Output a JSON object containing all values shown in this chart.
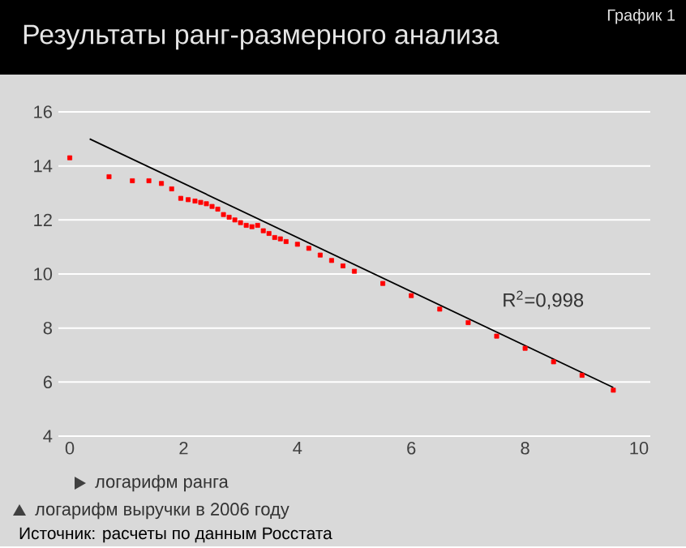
{
  "chart_data": {
    "type": "scatter",
    "title": "Результаты ранг-размерного анализа",
    "subtitle": "График 1",
    "xlabel": "логарифм ранга",
    "ylabel": "логарифм выручки в 2006 году",
    "annotations": [
      "R$^{2}$=0,998",
      "Источник: расчеты по данным Росстата"
    ],
    "xlim": [
      -0.2,
      10.2
    ],
    "ylim": [
      4,
      16
    ],
    "xticks": [
      0,
      2,
      4,
      6,
      8,
      10
    ],
    "yticks": [
      4,
      6,
      8,
      10,
      12,
      14,
      16
    ],
    "grid": "y",
    "series": [
      {
        "color": "#ff0000",
        "marker": "square",
        "x": [
          0,
          0.69,
          1.1,
          1.39,
          1.61,
          1.79,
          1.95,
          2.08,
          2.2,
          2.3,
          2.4,
          2.5,
          2.6,
          2.7,
          2.8,
          2.9,
          3.0,
          3.1,
          3.2,
          3.3,
          3.4,
          3.5,
          3.6,
          3.7,
          3.8,
          4.0,
          4.2,
          4.4,
          4.6,
          4.8,
          5.0,
          5.5,
          6.0,
          6.5,
          7.0,
          7.5,
          8.0,
          8.5,
          9.0,
          9.55
        ],
        "values": [
          14.3,
          13.6,
          13.45,
          13.45,
          13.35,
          13.15,
          12.8,
          12.75,
          12.7,
          12.65,
          12.6,
          12.5,
          12.4,
          12.2,
          12.1,
          12.0,
          11.9,
          11.8,
          11.75,
          11.8,
          11.6,
          11.5,
          11.35,
          11.3,
          11.2,
          11.1,
          10.95,
          10.7,
          10.5,
          10.3,
          10.1,
          9.65,
          9.2,
          8.7,
          8.2,
          7.7,
          7.25,
          6.75,
          6.25,
          5.7
        ]
      },
      {
        "type": "line",
        "color": "#000000",
        "line_style": "solid",
        "x": [
          0.35,
          9.55
        ],
        "values": [
          15.0,
          5.8
        ]
      }
    ]
  }
}
